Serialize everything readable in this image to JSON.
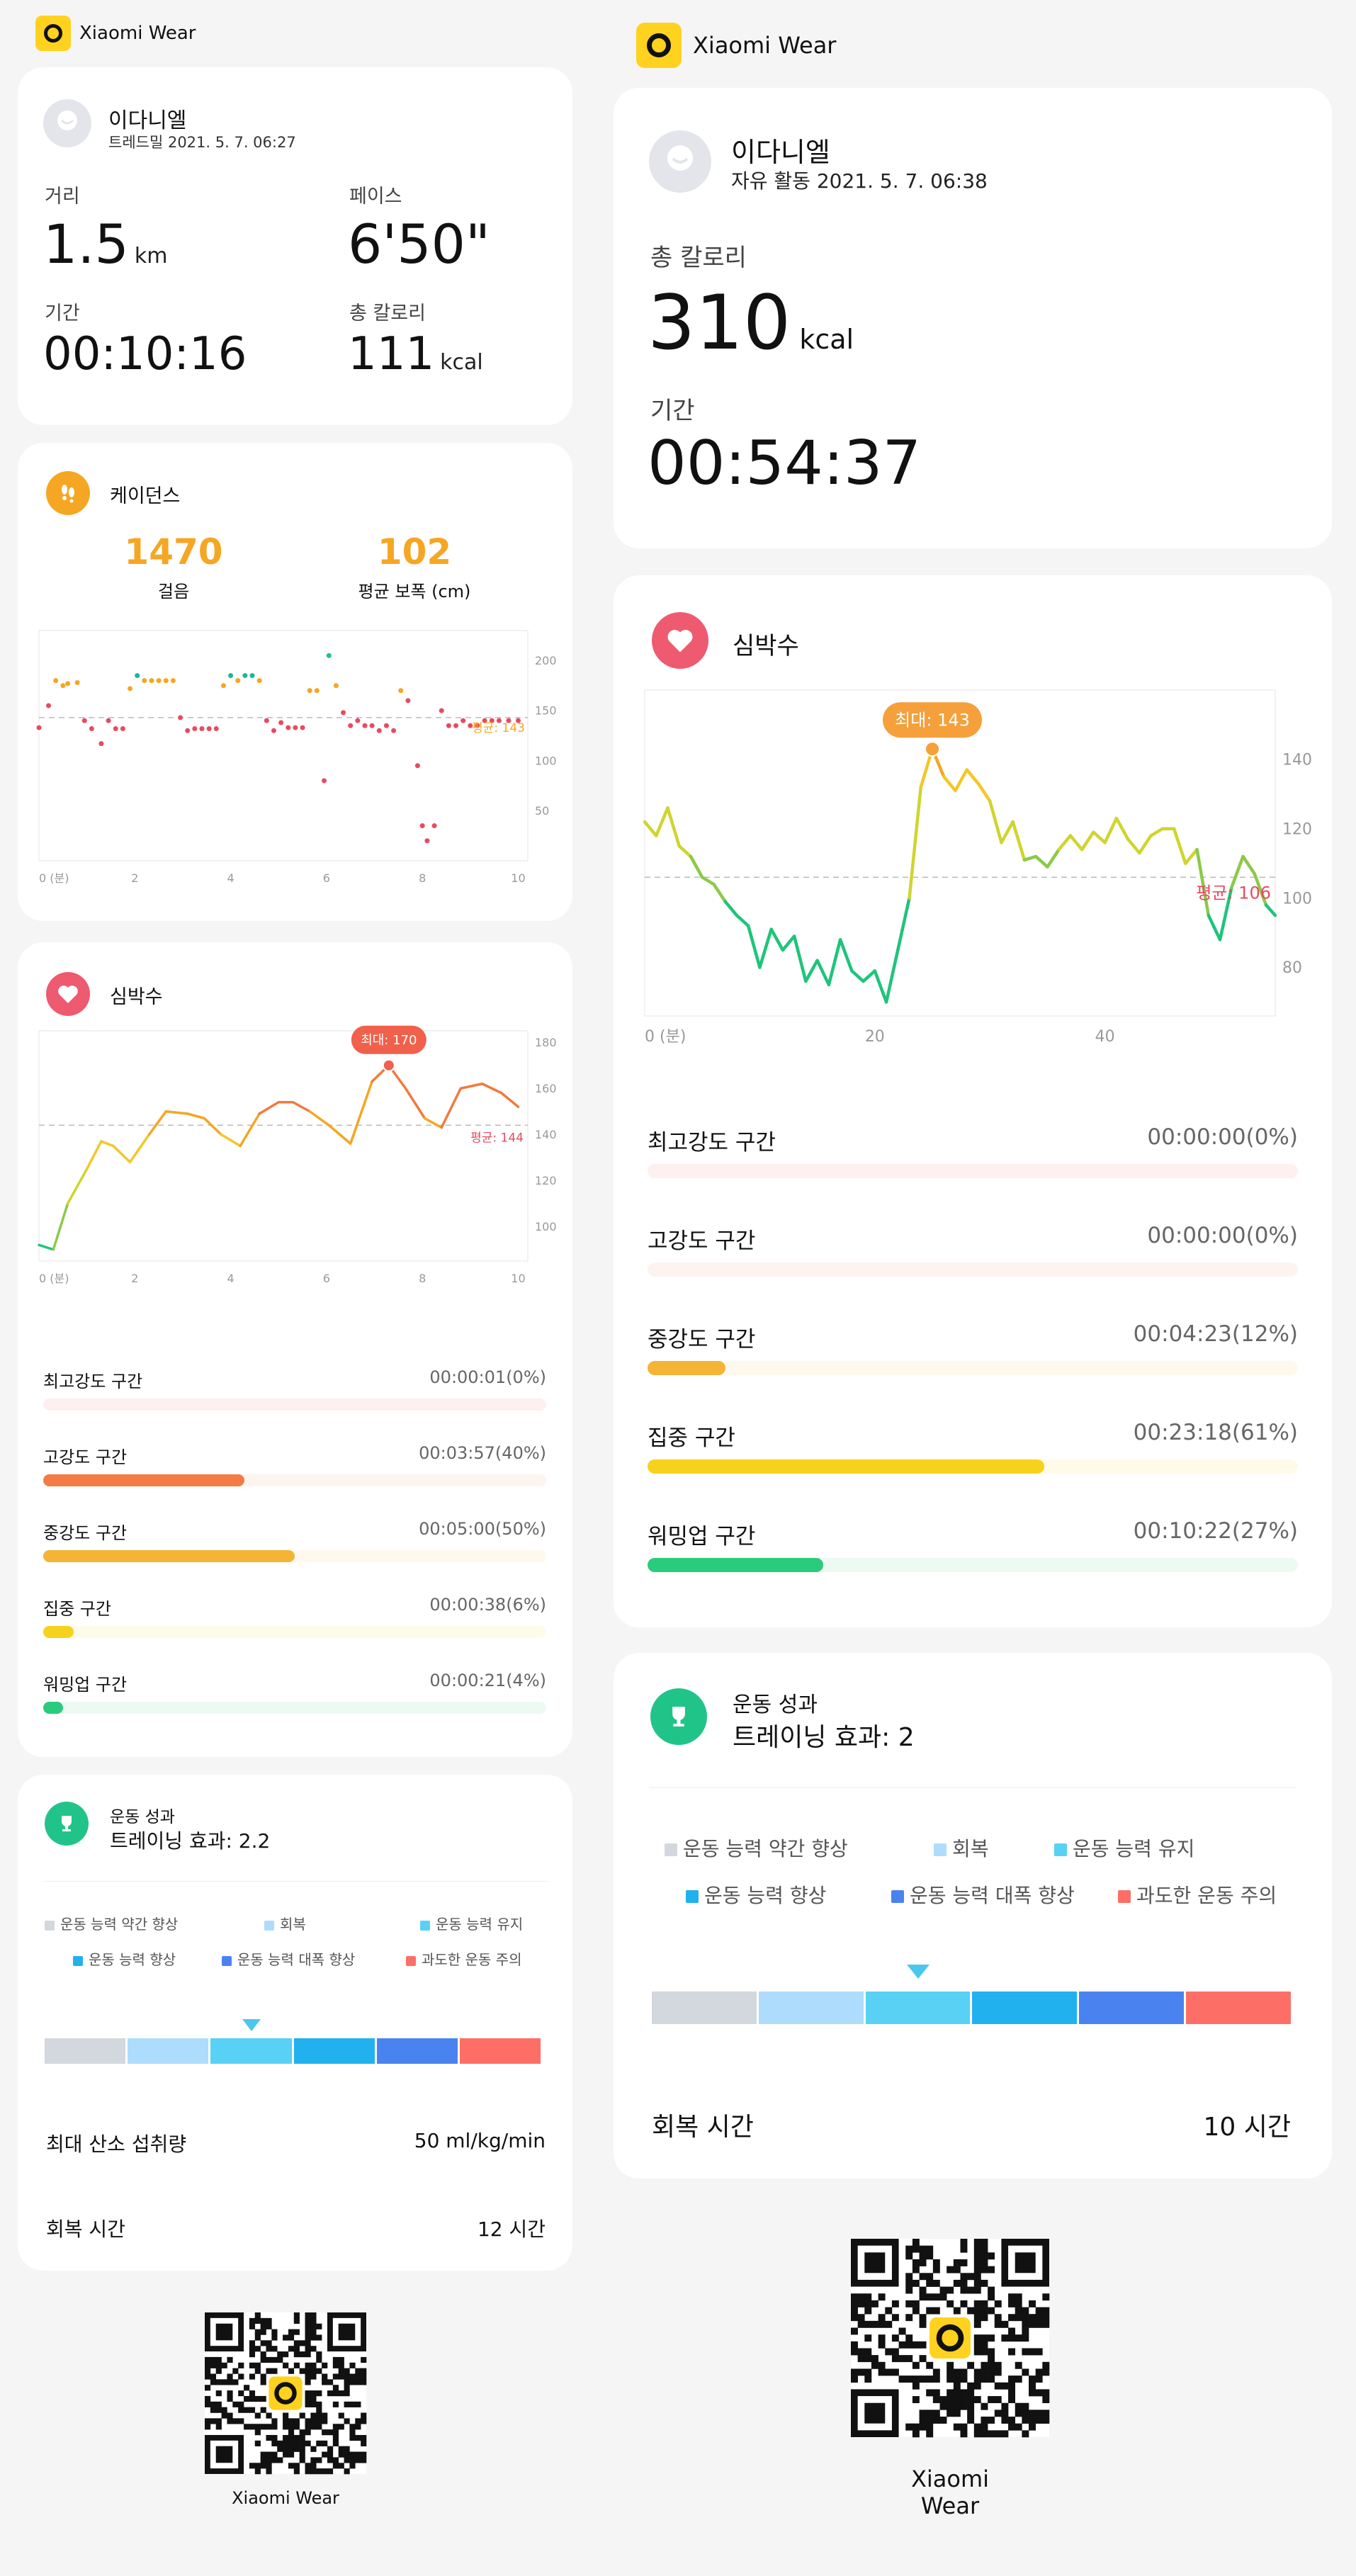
{
  "app_name": "Xiaomi Wear",
  "left": {
    "header": {
      "name": "이다니엘",
      "subtitle": "트레드밀 2021. 5. 7. 06:27"
    },
    "stats": [
      {
        "label": "거리",
        "value": "1.5",
        "unit": "km"
      },
      {
        "label": "페이스",
        "value": "6'50\"",
        "unit": ""
      },
      {
        "label": "기간",
        "value": "00:10:16",
        "unit": ""
      },
      {
        "label": "총 칼로리",
        "value": "111",
        "unit": "kcal"
      }
    ],
    "cadence": {
      "title": "케이던스",
      "steps_value": "1470",
      "steps_label": "걸음",
      "stride_value": "102",
      "stride_label": "평균 보폭 (cm)",
      "chart_data": {
        "type": "scatter",
        "x_ticks": [
          "0 (분)",
          "2",
          "4",
          "6",
          "8",
          "10"
        ],
        "y_ticks": [
          "200",
          "150",
          "100",
          "50"
        ],
        "ylim": [
          0,
          230
        ],
        "xlim": [
          0,
          10.2
        ],
        "avg_label": "평균: 143",
        "avg_value": 143,
        "points": [
          [
            0,
            133
          ],
          [
            0.2,
            155
          ],
          [
            0.35,
            180
          ],
          [
            0.5,
            175
          ],
          [
            0.6,
            177
          ],
          [
            0.8,
            178
          ],
          [
            0.95,
            140
          ],
          [
            1.1,
            132
          ],
          [
            1.3,
            117
          ],
          [
            1.45,
            140
          ],
          [
            1.6,
            132
          ],
          [
            1.75,
            132
          ],
          [
            1.9,
            172
          ],
          [
            2.05,
            185
          ],
          [
            2.2,
            180
          ],
          [
            2.35,
            180
          ],
          [
            2.5,
            180
          ],
          [
            2.65,
            180
          ],
          [
            2.8,
            180
          ],
          [
            2.95,
            143
          ],
          [
            3.1,
            130
          ],
          [
            3.25,
            132
          ],
          [
            3.4,
            132
          ],
          [
            3.55,
            132
          ],
          [
            3.7,
            132
          ],
          [
            3.85,
            175
          ],
          [
            4.0,
            185
          ],
          [
            4.15,
            180
          ],
          [
            4.3,
            185
          ],
          [
            4.45,
            185
          ],
          [
            4.6,
            180
          ],
          [
            4.75,
            140
          ],
          [
            4.9,
            130
          ],
          [
            5.05,
            138
          ],
          [
            5.2,
            133
          ],
          [
            5.35,
            133
          ],
          [
            5.5,
            133
          ],
          [
            5.65,
            170
          ],
          [
            5.8,
            170
          ],
          [
            5.95,
            80
          ],
          [
            6.05,
            205
          ],
          [
            6.2,
            175
          ],
          [
            6.35,
            148
          ],
          [
            6.5,
            135
          ],
          [
            6.65,
            140
          ],
          [
            6.8,
            135
          ],
          [
            6.95,
            135
          ],
          [
            7.1,
            130
          ],
          [
            7.25,
            135
          ],
          [
            7.4,
            130
          ],
          [
            7.55,
            170
          ],
          [
            7.7,
            160
          ],
          [
            7.9,
            95
          ],
          [
            8.0,
            35
          ],
          [
            8.1,
            20
          ],
          [
            8.25,
            35
          ],
          [
            8.4,
            150
          ],
          [
            8.55,
            135
          ],
          [
            8.7,
            135
          ],
          [
            8.85,
            140
          ],
          [
            9.0,
            135
          ],
          [
            9.15,
            135
          ],
          [
            9.3,
            140
          ],
          [
            9.45,
            140
          ],
          [
            9.6,
            140
          ],
          [
            9.8,
            140
          ],
          [
            10.0,
            140
          ]
        ]
      }
    },
    "heart": {
      "title": "심박수",
      "chart_data": {
        "type": "line",
        "x_ticks": [
          "0 (분)",
          "2",
          "4",
          "6",
          "8",
          "10"
        ],
        "y_ticks": [
          "180",
          "160",
          "140",
          "120",
          "100"
        ],
        "ylim": [
          85,
          185
        ],
        "xlim": [
          0,
          10.2
        ],
        "max_label": "최대: 170",
        "avg_label": "평균: 144",
        "avg_value": 144,
        "x": [
          0,
          0.3,
          0.6,
          1.0,
          1.3,
          1.55,
          1.9,
          2.3,
          2.65,
          3.1,
          3.45,
          3.8,
          4.2,
          4.6,
          5.0,
          5.3,
          5.65,
          6.05,
          6.5,
          6.95,
          7.3,
          7.65,
          8.05,
          8.4,
          8.8,
          9.25,
          9.65,
          10.0
        ],
        "y": [
          92,
          90,
          110,
          125,
          137,
          135,
          128,
          140,
          150,
          149,
          147,
          140,
          135,
          149,
          154,
          154,
          150,
          144,
          136,
          163,
          170,
          160,
          147,
          143,
          160,
          162,
          158,
          152
        ]
      },
      "zones": [
        {
          "name": "최고강도 구간",
          "time": "00:00:01(0%)",
          "pct": 0,
          "color": "#ef5b5b",
          "bg": "#fdf0ef"
        },
        {
          "name": "고강도 구간",
          "time": "00:03:57(40%)",
          "pct": 40,
          "color": "#f47b45",
          "bg": "#fef4ef"
        },
        {
          "name": "중강도 구간",
          "time": "00:05:00(50%)",
          "pct": 50,
          "color": "#f6b436",
          "bg": "#fff8ec"
        },
        {
          "name": "집중 구간",
          "time": "00:00:38(6%)",
          "pct": 6,
          "color": "#f7d21c",
          "bg": "#fffbe9"
        },
        {
          "name": "워밍업 구간",
          "time": "00:00:21(4%)",
          "pct": 4,
          "color": "#2acb7d",
          "bg": "#edfaf2"
        }
      ]
    },
    "perf": {
      "title": "운동 성과",
      "effect": "트레이닝 효과: 2.2",
      "legend": [
        {
          "label": "운동 능력 약간 향상",
          "color": "#d3d7de"
        },
        {
          "label": "회복",
          "color": "#aedcfc"
        },
        {
          "label": "운동 능력 유지",
          "color": "#59d1f5"
        },
        {
          "label": "운동 능력 향상",
          "color": "#21b1ee"
        },
        {
          "label": "운동 능력 대폭 향상",
          "color": "#4a83f0"
        },
        {
          "label": "과도한 운동 주의",
          "color": "#fd6f66"
        }
      ],
      "pointer_segment": 2,
      "vo2_label": "최대 산소 섭취량",
      "vo2_value": "50 ml/kg/min",
      "recovery_label": "회복 시간",
      "recovery_value": "12 시간"
    },
    "qr_caption": "Xiaomi Wear"
  },
  "right": {
    "header": {
      "name": "이다니엘",
      "subtitle": "자유 활동 2021. 5. 7. 06:38"
    },
    "cal_label": "총 칼로리",
    "cal_value": "310",
    "cal_unit": "kcal",
    "dur_label": "기간",
    "dur_value": "00:54:37",
    "heart": {
      "title": "심박수",
      "chart_data": {
        "type": "line",
        "x_ticks": [
          "0 (분)",
          "20",
          "40"
        ],
        "y_ticks": [
          "140",
          "120",
          "100",
          "80"
        ],
        "ylim": [
          66,
          160
        ],
        "xlim": [
          0,
          54.8
        ],
        "max_label": "최대: 143",
        "avg_label": "평균: 106",
        "avg_value": 106,
        "x": [
          0,
          1,
          2,
          3,
          4,
          5,
          6,
          7,
          8,
          9,
          10,
          11,
          12,
          13,
          14,
          15,
          16,
          17,
          18,
          19,
          20,
          21,
          22,
          23,
          24,
          25,
          26,
          27,
          28,
          29,
          30,
          31,
          32,
          33,
          34,
          35,
          36,
          37,
          38,
          39,
          40,
          41,
          42,
          43,
          44,
          45,
          46,
          47,
          48,
          49,
          50,
          51,
          52,
          53,
          54,
          54.8
        ],
        "y": [
          122,
          118,
          126,
          115,
          112,
          106,
          104,
          99,
          95,
          92,
          80,
          91,
          85,
          89,
          76,
          82,
          75,
          88,
          79,
          76,
          79,
          70,
          85,
          100,
          132,
          143,
          135,
          131,
          137,
          133,
          128,
          116,
          122,
          111,
          112,
          109,
          114,
          118,
          114,
          119,
          116,
          123,
          117,
          113,
          118,
          120,
          120,
          110,
          114,
          95,
          88,
          103,
          112,
          107,
          98,
          95
        ]
      },
      "zones": [
        {
          "name": "최고강도 구간",
          "time": "00:00:00(0%)",
          "pct": 0,
          "color": "#ef5b5b",
          "bg": "#fdf0ef"
        },
        {
          "name": "고강도 구간",
          "time": "00:00:00(0%)",
          "pct": 0,
          "color": "#f47b45",
          "bg": "#fef4ef"
        },
        {
          "name": "중강도 구간",
          "time": "00:04:23(12%)",
          "pct": 12,
          "color": "#f6b436",
          "bg": "#fff8ec"
        },
        {
          "name": "집중 구간",
          "time": "00:23:18(61%)",
          "pct": 61,
          "color": "#f7d21c",
          "bg": "#fffbe9"
        },
        {
          "name": "워밍업 구간",
          "time": "00:10:22(27%)",
          "pct": 27,
          "color": "#2acb7d",
          "bg": "#edfaf2"
        }
      ]
    },
    "perf": {
      "title": "운동 성과",
      "effect": "트레이닝 효과: 2",
      "legend": [
        {
          "label": "운동 능력 약간 향상",
          "color": "#d3d7de"
        },
        {
          "label": "회복",
          "color": "#aedcfc"
        },
        {
          "label": "운동 능력 유지",
          "color": "#59d1f5"
        },
        {
          "label": "운동 능력 향상",
          "color": "#21b1ee"
        },
        {
          "label": "운동 능력 대폭 향상",
          "color": "#4a83f0"
        },
        {
          "label": "과도한 운동 주의",
          "color": "#fd6f66"
        }
      ],
      "pointer_segment": 2,
      "recovery_label": "회복 시간",
      "recovery_value": "10 시간"
    },
    "qr_caption": "Xiaomi Wear"
  }
}
